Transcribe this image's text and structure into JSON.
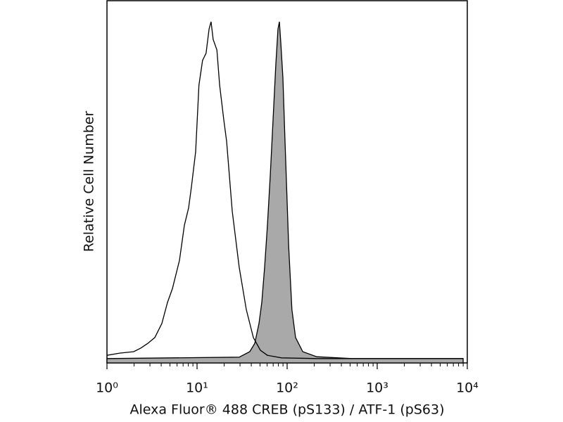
{
  "chart_data": {
    "type": "histogram-overlay",
    "xlabel": "Alexa Fluor® 488 CREB (pS133) / ATF-1 (pS63)",
    "ylabel": "Relative Cell Number",
    "xscale": "log",
    "minor_ticks": true,
    "xlim": [
      1,
      10000
    ],
    "ylim": [
      0,
      100
    ],
    "xticks": [
      {
        "value": 1,
        "label": "10⁰"
      },
      {
        "value": 10,
        "label": "10¹"
      },
      {
        "value": 100,
        "label": "10²"
      },
      {
        "value": 1000,
        "label": "10³"
      },
      {
        "value": 10000,
        "label": "10⁴"
      }
    ],
    "series": [
      {
        "color": "#000000",
        "filled": false,
        "x": [
          1.0,
          1.38,
          1.98,
          2.37,
          2.84,
          3.4,
          4.07,
          4.7,
          5.33,
          6.38,
          7.23,
          8.06,
          8.66,
          9.64,
          10.5,
          11.5,
          12.6,
          13.6,
          14.3,
          15.1,
          16.6,
          17.8,
          19.8,
          21.3,
          24.6,
          29.4,
          35.2,
          42.2,
          50.5,
          60.4,
          86.6,
          213,
          3162,
          9000
        ],
        "values": [
          2.1,
          2.7,
          3.1,
          4.1,
          5.4,
          7.0,
          10.9,
          16.7,
          20.5,
          28.3,
          38.0,
          42.8,
          48.6,
          58.3,
          76.7,
          83.5,
          85.5,
          92.2,
          94.2,
          89.3,
          86.4,
          76.7,
          67.1,
          61.2,
          41.9,
          26.4,
          14.7,
          7.0,
          3.5,
          2.1,
          1.4,
          1.2,
          1.2,
          1.2
        ]
      },
      {
        "color": "#a9a9a9",
        "filled": true,
        "x": [
          1.0,
          29.4,
          38.5,
          43.7,
          48.7,
          52.3,
          56.2,
          60.4,
          64.9,
          69.8,
          75.0,
          79.1,
          82.0,
          85.1,
          89.8,
          94.8,
          104,
          113,
          124,
          149,
          213,
          523,
          9000
        ],
        "values": [
          1.2,
          1.6,
          3.1,
          5.4,
          10.9,
          16.7,
          26.4,
          38.0,
          51.6,
          67.1,
          82.6,
          92.2,
          94.2,
          88.4,
          78.7,
          61.2,
          32.2,
          14.7,
          7.0,
          3.1,
          1.7,
          1.2,
          1.2
        ]
      }
    ]
  }
}
